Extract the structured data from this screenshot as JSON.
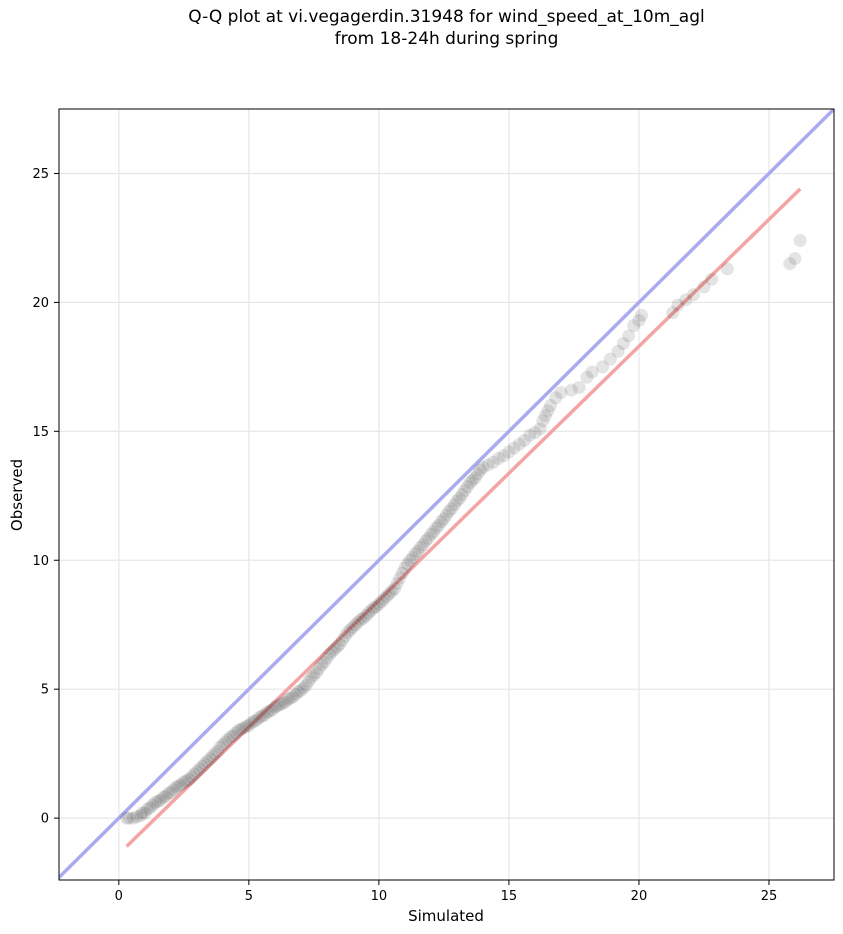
{
  "chart_data": {
    "type": "scatter",
    "title_line1": "Q-Q plot at vi.vegagerdin.31948 for wind_speed_at_10m_agl",
    "title_line2": "from 18-24h during spring",
    "xlabel": "Simulated",
    "ylabel": "Observed",
    "xlim": [
      -2.3,
      27.5
    ],
    "ylim": [
      -2.4,
      27.5
    ],
    "xticks": [
      0,
      5,
      10,
      15,
      20,
      25
    ],
    "yticks": [
      0,
      5,
      10,
      15,
      20,
      25
    ],
    "grid": true,
    "identity_line": {
      "color": "#aaaaf0"
    },
    "fit_line": {
      "color": "#f4a4a4",
      "x": [
        0.3,
        26.2
      ],
      "y": [
        -1.1,
        24.4
      ]
    },
    "points_color": "#222222",
    "points": [
      [
        0.3,
        0.0
      ],
      [
        0.4,
        0.0
      ],
      [
        0.55,
        0.0
      ],
      [
        0.7,
        0.05
      ],
      [
        0.85,
        0.1
      ],
      [
        0.9,
        0.2
      ],
      [
        1.0,
        0.2
      ],
      [
        1.1,
        0.35
      ],
      [
        1.2,
        0.4
      ],
      [
        1.3,
        0.5
      ],
      [
        1.4,
        0.6
      ],
      [
        1.5,
        0.65
      ],
      [
        1.6,
        0.7
      ],
      [
        1.7,
        0.8
      ],
      [
        1.8,
        0.85
      ],
      [
        1.9,
        0.95
      ],
      [
        2.0,
        1.0
      ],
      [
        2.1,
        1.1
      ],
      [
        2.2,
        1.2
      ],
      [
        2.3,
        1.25
      ],
      [
        2.4,
        1.3
      ],
      [
        2.5,
        1.4
      ],
      [
        2.6,
        1.45
      ],
      [
        2.7,
        1.5
      ],
      [
        2.8,
        1.6
      ],
      [
        2.9,
        1.7
      ],
      [
        3.0,
        1.8
      ],
      [
        3.1,
        1.9
      ],
      [
        3.2,
        2.0
      ],
      [
        3.3,
        2.1
      ],
      [
        3.4,
        2.2
      ],
      [
        3.5,
        2.3
      ],
      [
        3.6,
        2.4
      ],
      [
        3.7,
        2.5
      ],
      [
        3.8,
        2.6
      ],
      [
        3.9,
        2.75
      ],
      [
        4.0,
        2.85
      ],
      [
        4.1,
        2.95
      ],
      [
        4.2,
        3.05
      ],
      [
        4.3,
        3.15
      ],
      [
        4.4,
        3.2
      ],
      [
        4.5,
        3.3
      ],
      [
        4.6,
        3.4
      ],
      [
        4.7,
        3.45
      ],
      [
        4.8,
        3.5
      ],
      [
        4.9,
        3.55
      ],
      [
        5.0,
        3.6
      ],
      [
        5.1,
        3.7
      ],
      [
        5.2,
        3.75
      ],
      [
        5.3,
        3.8
      ],
      [
        5.4,
        3.9
      ],
      [
        5.5,
        3.95
      ],
      [
        5.6,
        4.0
      ],
      [
        5.7,
        4.1
      ],
      [
        5.8,
        4.15
      ],
      [
        5.9,
        4.2
      ],
      [
        6.0,
        4.3
      ],
      [
        6.1,
        4.35
      ],
      [
        6.2,
        4.4
      ],
      [
        6.3,
        4.45
      ],
      [
        6.4,
        4.5
      ],
      [
        6.5,
        4.6
      ],
      [
        6.6,
        4.65
      ],
      [
        6.7,
        4.7
      ],
      [
        6.8,
        4.8
      ],
      [
        6.9,
        4.9
      ],
      [
        7.0,
        4.95
      ],
      [
        7.1,
        5.05
      ],
      [
        7.2,
        5.15
      ],
      [
        7.3,
        5.3
      ],
      [
        7.4,
        5.45
      ],
      [
        7.5,
        5.55
      ],
      [
        7.6,
        5.65
      ],
      [
        7.7,
        5.8
      ],
      [
        7.8,
        5.95
      ],
      [
        7.9,
        6.05
      ],
      [
        8.0,
        6.2
      ],
      [
        8.1,
        6.35
      ],
      [
        8.2,
        6.45
      ],
      [
        8.3,
        6.55
      ],
      [
        8.4,
        6.65
      ],
      [
        8.5,
        6.75
      ],
      [
        8.6,
        6.9
      ],
      [
        8.7,
        7.05
      ],
      [
        8.8,
        7.2
      ],
      [
        8.9,
        7.3
      ],
      [
        9.0,
        7.4
      ],
      [
        9.1,
        7.5
      ],
      [
        9.2,
        7.6
      ],
      [
        9.3,
        7.7
      ],
      [
        9.4,
        7.75
      ],
      [
        9.5,
        7.85
      ],
      [
        9.6,
        7.95
      ],
      [
        9.7,
        8.05
      ],
      [
        9.8,
        8.15
      ],
      [
        9.9,
        8.2
      ],
      [
        10.0,
        8.3
      ],
      [
        10.1,
        8.4
      ],
      [
        10.2,
        8.5
      ],
      [
        10.3,
        8.6
      ],
      [
        10.4,
        8.7
      ],
      [
        10.5,
        8.8
      ],
      [
        10.6,
        8.9
      ],
      [
        10.7,
        9.1
      ],
      [
        10.8,
        9.3
      ],
      [
        10.9,
        9.5
      ],
      [
        11.0,
        9.7
      ],
      [
        11.1,
        9.85
      ],
      [
        11.2,
        10.0
      ],
      [
        11.3,
        10.1
      ],
      [
        11.4,
        10.25
      ],
      [
        11.5,
        10.35
      ],
      [
        11.6,
        10.5
      ],
      [
        11.7,
        10.6
      ],
      [
        11.8,
        10.75
      ],
      [
        11.9,
        10.85
      ],
      [
        12.0,
        11.0
      ],
      [
        12.1,
        11.1
      ],
      [
        12.2,
        11.25
      ],
      [
        12.3,
        11.35
      ],
      [
        12.4,
        11.5
      ],
      [
        12.5,
        11.6
      ],
      [
        12.6,
        11.75
      ],
      [
        12.7,
        11.9
      ],
      [
        12.8,
        12.0
      ],
      [
        12.9,
        12.15
      ],
      [
        13.0,
        12.3
      ],
      [
        13.1,
        12.4
      ],
      [
        13.2,
        12.55
      ],
      [
        13.3,
        12.7
      ],
      [
        13.4,
        12.85
      ],
      [
        13.5,
        13.0
      ],
      [
        13.6,
        13.1
      ],
      [
        13.7,
        13.2
      ],
      [
        13.8,
        13.35
      ],
      [
        13.9,
        13.5
      ],
      [
        14.0,
        13.6
      ],
      [
        14.2,
        13.7
      ],
      [
        14.4,
        13.8
      ],
      [
        14.6,
        13.95
      ],
      [
        14.8,
        14.05
      ],
      [
        15.0,
        14.2
      ],
      [
        15.2,
        14.35
      ],
      [
        15.4,
        14.5
      ],
      [
        15.6,
        14.65
      ],
      [
        15.8,
        14.85
      ],
      [
        16.0,
        14.95
      ],
      [
        16.2,
        15.1
      ],
      [
        16.3,
        15.4
      ],
      [
        16.4,
        15.6
      ],
      [
        16.5,
        15.8
      ],
      [
        16.6,
        16.0
      ],
      [
        16.8,
        16.3
      ],
      [
        17.0,
        16.5
      ],
      [
        17.4,
        16.6
      ],
      [
        17.7,
        16.7
      ],
      [
        18.0,
        17.1
      ],
      [
        18.2,
        17.3
      ],
      [
        18.6,
        17.5
      ],
      [
        18.9,
        17.8
      ],
      [
        19.2,
        18.1
      ],
      [
        19.4,
        18.4
      ],
      [
        19.6,
        18.7
      ],
      [
        19.8,
        19.1
      ],
      [
        20.0,
        19.3
      ],
      [
        20.1,
        19.5
      ],
      [
        21.3,
        19.6
      ],
      [
        21.5,
        19.9
      ],
      [
        21.8,
        20.1
      ],
      [
        22.1,
        20.3
      ],
      [
        22.5,
        20.6
      ],
      [
        22.8,
        20.9
      ],
      [
        23.4,
        21.3
      ],
      [
        25.8,
        21.5
      ],
      [
        26.0,
        21.7
      ],
      [
        26.2,
        22.4
      ]
    ]
  }
}
